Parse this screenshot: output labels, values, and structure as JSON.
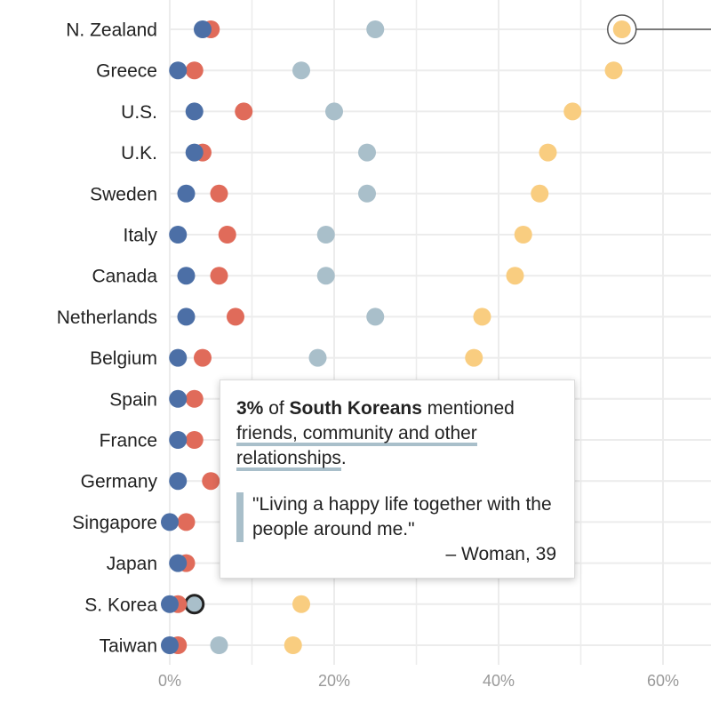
{
  "chart_data": {
    "type": "scatter",
    "title": "",
    "xlabel": "",
    "ylabel": "",
    "xlim": [
      0,
      65
    ],
    "x_ticks": [
      0,
      20,
      40,
      60
    ],
    "x_tick_labels": [
      "0%",
      "20%",
      "40%",
      "60%"
    ],
    "grid": true,
    "categories": [
      "N. Zealand",
      "Greece",
      "U.S.",
      "U.K.",
      "Sweden",
      "Italy",
      "Canada",
      "Netherlands",
      "Belgium",
      "Spain",
      "France",
      "Germany",
      "Singapore",
      "Japan",
      "S. Korea",
      "Taiwan"
    ],
    "series": [
      {
        "color": "#f9cd80",
        "values": [
          55,
          54,
          49,
          46,
          45,
          43,
          42,
          38,
          37,
          null,
          null,
          null,
          null,
          null,
          16,
          15
        ]
      },
      {
        "color": "#a9bfca",
        "values": [
          25,
          16,
          20,
          24,
          24,
          19,
          19,
          25,
          18,
          null,
          null,
          null,
          null,
          null,
          3,
          6
        ]
      },
      {
        "color": "#e06b5a",
        "values": [
          5,
          3,
          9,
          4,
          6,
          7,
          6,
          8,
          4,
          3,
          3,
          5,
          2,
          2,
          1,
          1
        ]
      },
      {
        "color": "#4c6fa6",
        "values": [
          4,
          1,
          3,
          3,
          2,
          1,
          2,
          2,
          1,
          1,
          1,
          1,
          0,
          1,
          0,
          0
        ]
      }
    ],
    "highlighted": [
      {
        "category": "N. Zealand",
        "series_index": 0,
        "style": "ring"
      },
      {
        "category": "S. Korea",
        "series_index": 1,
        "style": "selected"
      }
    ]
  },
  "tooltip": {
    "pct": "3%",
    "of": " of ",
    "country": "South Koreans",
    "mentioned": " mentioned ",
    "topic_line1": "friends, community and other",
    "topic_line2": "relationships",
    "period": ".",
    "quote": "\"Living a happy life together with the people around me.\"",
    "attribution": "– Woman, 39"
  }
}
